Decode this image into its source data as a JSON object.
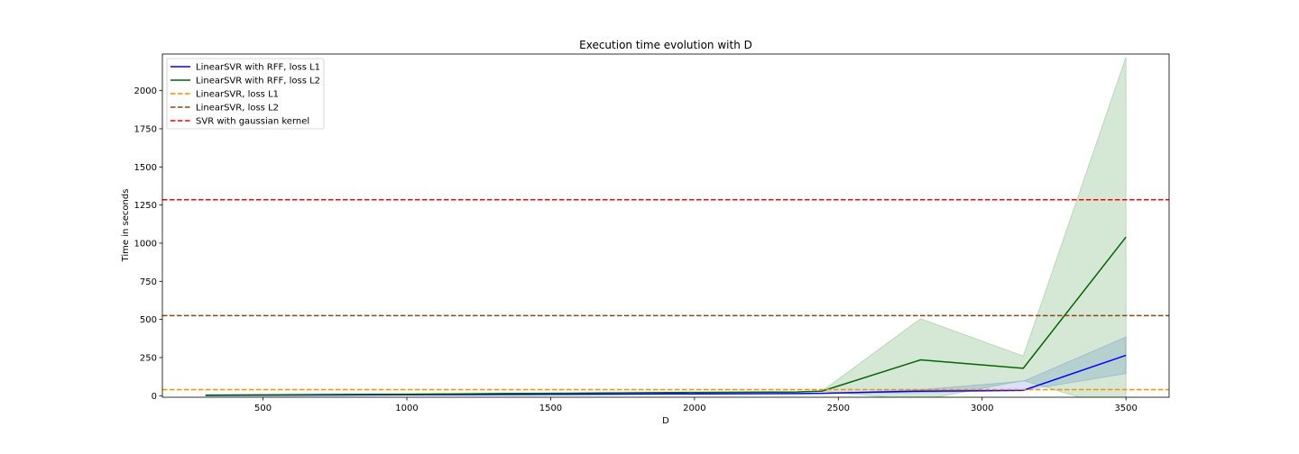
{
  "chart_data": {
    "type": "line",
    "title": "Execution time evolution with D",
    "xlabel": "D",
    "ylabel": "Time in seconds",
    "xlim": [
      150,
      3650
    ],
    "ylim": [
      -10,
      2240
    ],
    "xticks": [
      500,
      1000,
      1500,
      2000,
      2500,
      3000,
      3500
    ],
    "yticks": [
      0,
      250,
      500,
      750,
      1000,
      1250,
      1500,
      1750,
      2000
    ],
    "grid": false,
    "legend_position": "top-left",
    "x": [
      300,
      643,
      986,
      1329,
      1671,
      2014,
      2357,
      2443,
      2786,
      3143,
      3500
    ],
    "series": [
      {
        "name": "LinearSVR with RFF, loss L1",
        "style": "solid",
        "color": "#0000ff",
        "band_color": "#4169e1",
        "values": [
          2,
          4,
          6,
          8,
          10,
          12,
          14,
          16,
          30,
          35,
          265
        ],
        "lower": [
          2,
          4,
          6,
          8,
          10,
          12,
          14,
          16,
          20,
          35,
          145
        ],
        "upper": [
          2,
          4,
          6,
          8,
          10,
          12,
          14,
          16,
          40,
          95,
          385
        ]
      },
      {
        "name": "LinearSVR with RFF, loss L2",
        "style": "solid",
        "color": "#006400",
        "band_color": "#2e8b2e",
        "values": [
          4,
          7,
          10,
          14,
          18,
          22,
          25,
          30,
          235,
          180,
          1040
        ],
        "lower": [
          4,
          7,
          10,
          14,
          18,
          22,
          25,
          30,
          -30,
          100,
          -100
        ],
        "upper": [
          4,
          7,
          10,
          14,
          18,
          22,
          25,
          30,
          505,
          260,
          2220
        ]
      },
      {
        "name": "LinearSVR, loss L1",
        "style": "dashed",
        "color": "#ff8c00",
        "constant": 40
      },
      {
        "name": "LinearSVR, loss L2",
        "style": "dashed",
        "color": "#8b4513",
        "constant": 525
      },
      {
        "name": "SVR with gaussian kernel",
        "style": "dashed",
        "color": "#ff0000",
        "constant": 1285
      }
    ]
  }
}
